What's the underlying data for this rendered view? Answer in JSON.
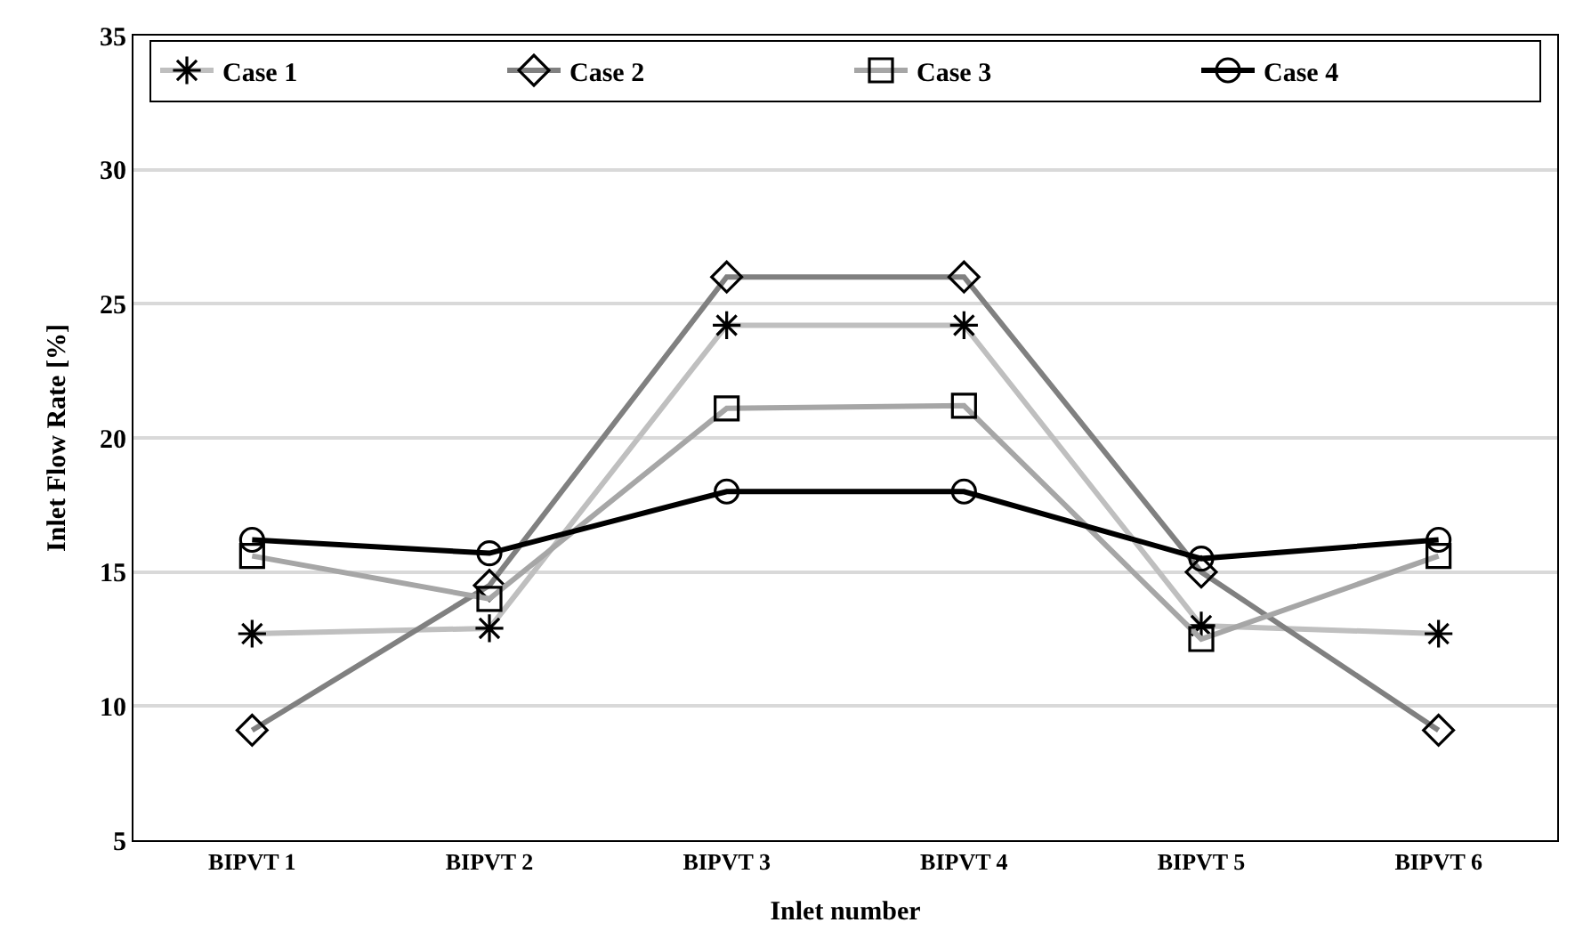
{
  "chart_data": {
    "type": "line",
    "xlabel": "Inlet number",
    "ylabel": "Inlet Flow Rate [%]",
    "categories": [
      "BIPVT 1",
      "BIPVT 2",
      "BIPVT 3",
      "BIPVT 4",
      "BIPVT 5",
      "BIPVT 6"
    ],
    "series": [
      {
        "name": "Case 1",
        "color": "#bfbfbf",
        "marker": "cross",
        "values": [
          12.7,
          12.9,
          24.2,
          24.2,
          13.0,
          12.7
        ]
      },
      {
        "name": "Case 2",
        "color": "#808080",
        "marker": "diamond",
        "values": [
          9.1,
          14.5,
          26.0,
          26.0,
          15.0,
          9.1
        ]
      },
      {
        "name": "Case 3",
        "color": "#a6a6a6",
        "marker": "square",
        "values": [
          15.6,
          14.0,
          21.1,
          21.2,
          12.5,
          15.6
        ]
      },
      {
        "name": "Case 4",
        "color": "#000000",
        "marker": "circle",
        "values": [
          16.2,
          15.7,
          18.0,
          18.0,
          15.5,
          16.2
        ]
      }
    ],
    "ylim": [
      5,
      35
    ],
    "yticks": [
      5,
      10,
      15,
      20,
      25,
      30,
      35
    ],
    "grid": "y",
    "legend": "top",
    "line_style": "solid"
  }
}
